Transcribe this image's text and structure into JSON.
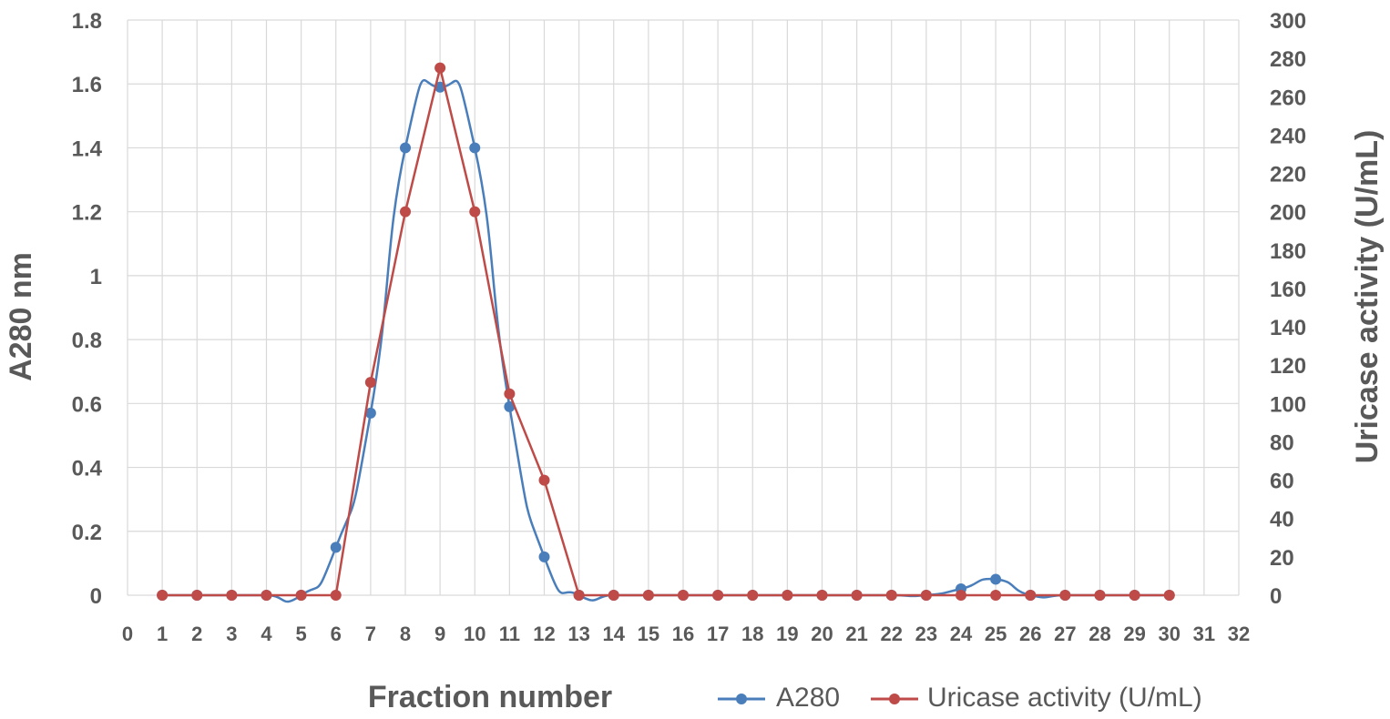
{
  "chart_data": {
    "type": "line",
    "xlabel": "Fraction number",
    "ylabel": "A280 nm",
    "y2label": "Uricase activity (U/mL)",
    "xlim": [
      0,
      32
    ],
    "ylim": [
      0,
      1.8
    ],
    "y2lim": [
      0,
      300
    ],
    "xticks": [
      "0",
      "1",
      "2",
      "3",
      "4",
      "5",
      "6",
      "7",
      "8",
      "9",
      "10",
      "11",
      "12",
      "13",
      "14",
      "15",
      "16",
      "17",
      "18",
      "19",
      "20",
      "21",
      "22",
      "23",
      "24",
      "25",
      "26",
      "27",
      "28",
      "29",
      "30",
      "31",
      "32"
    ],
    "yticks": [
      "0",
      "0.2",
      "0.4",
      "0.6",
      "0.8",
      "1",
      "1.2",
      "1.4",
      "1.6",
      "1.8"
    ],
    "y2ticks": [
      "0",
      "20",
      "40",
      "60",
      "80",
      "100",
      "120",
      "140",
      "160",
      "180",
      "200",
      "220",
      "240",
      "260",
      "280",
      "300"
    ],
    "grid": true,
    "legend_position": "bottom-right",
    "series": [
      {
        "name": "A280",
        "axis": "left",
        "smooth": true,
        "color": "#4a7ebb",
        "x": [
          1,
          2,
          3,
          4,
          5,
          6,
          7,
          8,
          9,
          10,
          11,
          12,
          13,
          14,
          15,
          16,
          17,
          18,
          19,
          20,
          21,
          22,
          23,
          24,
          25,
          26,
          27,
          28,
          29,
          30
        ],
        "values": [
          0,
          0,
          0,
          0,
          0,
          0.15,
          0.57,
          1.4,
          1.59,
          1.4,
          0.59,
          0.12,
          0,
          0,
          0,
          0,
          0,
          0,
          0,
          0,
          0,
          0,
          0,
          0.02,
          0.05,
          0,
          0,
          0,
          0,
          0
        ]
      },
      {
        "name": "Uricase activity (U/mL)",
        "axis": "right",
        "smooth": false,
        "color": "#be4b48",
        "x": [
          1,
          2,
          3,
          4,
          5,
          6,
          7,
          8,
          9,
          10,
          11,
          12,
          13,
          14,
          15,
          16,
          17,
          18,
          19,
          20,
          21,
          22,
          23,
          24,
          25,
          26,
          27,
          28,
          29,
          30
        ],
        "values": [
          0,
          0,
          0,
          0,
          0,
          0,
          111,
          200,
          275,
          200,
          105,
          60,
          0,
          0,
          0,
          0,
          0,
          0,
          0,
          0,
          0,
          0,
          0,
          0,
          0,
          0,
          0,
          0,
          0,
          0
        ]
      }
    ]
  }
}
